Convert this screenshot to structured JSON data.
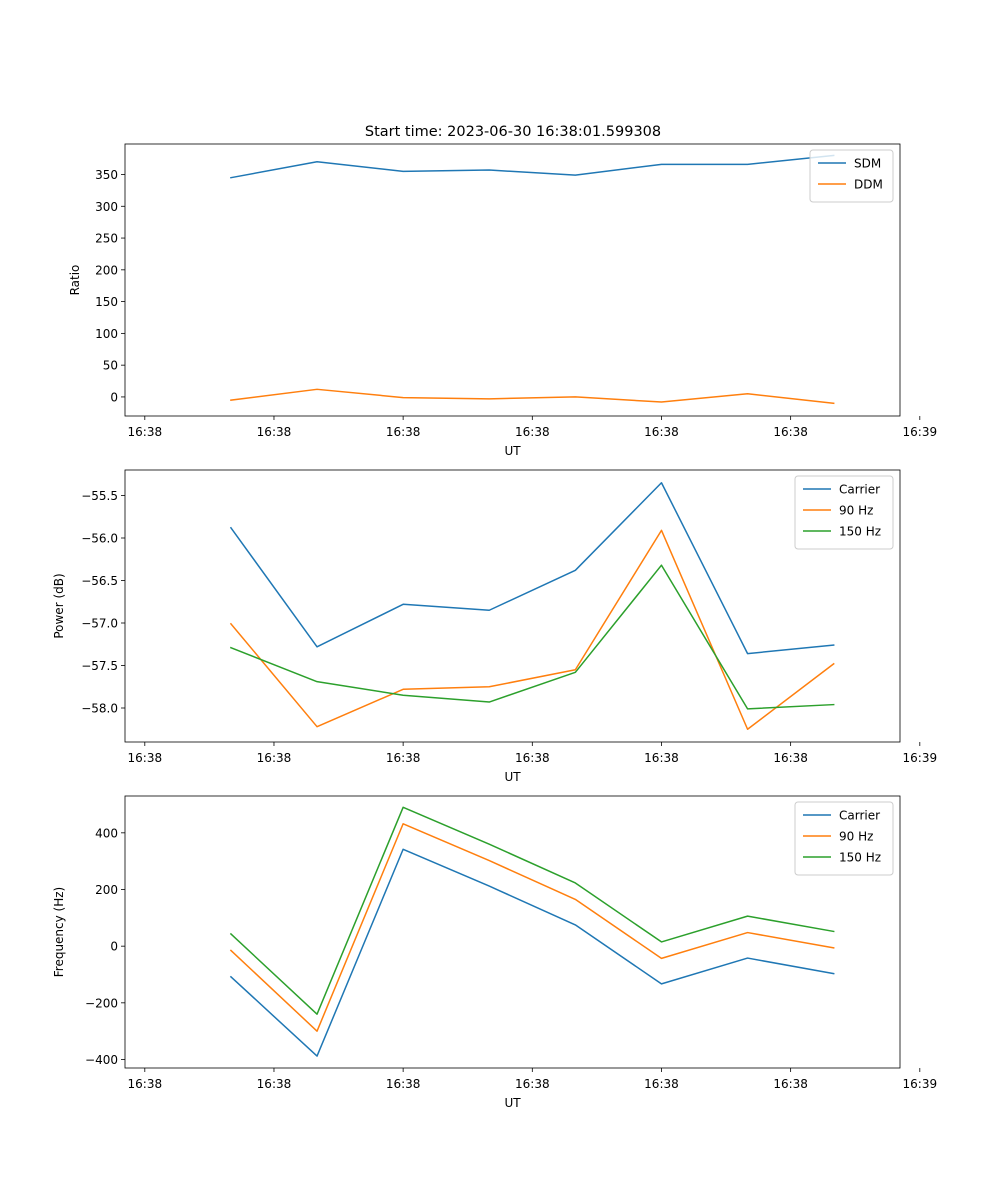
{
  "figure": {
    "title": "Start time: 2023-06-30 16:38:01.599308"
  },
  "colors": {
    "blue": "#1f77b4",
    "orange": "#ff7f0e",
    "green": "#2ca02c",
    "axis": "#000000"
  },
  "chart_data": [
    {
      "type": "line",
      "title": "Start time: 2023-06-30 16:38:01.599308",
      "xlabel": "UT",
      "ylabel": "Ratio",
      "x": [
        0.5,
        1.0,
        1.5,
        2.0,
        2.5,
        3.0,
        3.5,
        4.0
      ],
      "xlim": [
        -0.115,
        4.385
      ],
      "x_ticks": [
        0,
        0.75,
        1.5,
        2.25,
        3.0,
        3.75,
        4.5
      ],
      "x_ticklabels": [
        "16:38",
        "16:38",
        "16:38",
        "16:38",
        "16:38",
        "16:38",
        "16:39"
      ],
      "ylim": [
        -30,
        398
      ],
      "y_ticks": [
        0,
        50,
        100,
        150,
        200,
        250,
        300,
        350
      ],
      "y_ticklabels": [
        "0",
        "50",
        "100",
        "150",
        "200",
        "250",
        "300",
        "350"
      ],
      "legend_position": "upper right",
      "series": [
        {
          "name": "SDM",
          "color": "#1f77b4",
          "values": [
            345,
            370,
            355,
            357,
            349,
            366,
            366,
            380
          ]
        },
        {
          "name": "DDM",
          "color": "#ff7f0e",
          "values": [
            -5,
            12,
            -1,
            -3,
            0,
            -8,
            5,
            -10
          ]
        }
      ]
    },
    {
      "type": "line",
      "title": "",
      "xlabel": "UT",
      "ylabel": "Power (dB)",
      "x": [
        0.5,
        1.0,
        1.5,
        2.0,
        2.5,
        3.0,
        3.5,
        4.0
      ],
      "xlim": [
        -0.115,
        4.385
      ],
      "x_ticks": [
        0,
        0.75,
        1.5,
        2.25,
        3.0,
        3.75,
        4.5
      ],
      "x_ticklabels": [
        "16:38",
        "16:38",
        "16:38",
        "16:38",
        "16:38",
        "16:38",
        "16:39"
      ],
      "ylim": [
        -58.4,
        -55.2
      ],
      "y_ticks": [
        -58.0,
        -57.5,
        -57.0,
        -56.5,
        -56.0,
        -55.5
      ],
      "y_ticklabels": [
        "−58.0",
        "−57.5",
        "−57.0",
        "−56.5",
        "−56.0",
        "−55.5"
      ],
      "legend_position": "upper right",
      "series": [
        {
          "name": "Carrier",
          "color": "#1f77b4",
          "values": [
            -55.88,
            -57.28,
            -56.78,
            -56.85,
            -56.38,
            -55.35,
            -57.36,
            -57.26
          ]
        },
        {
          "name": "90 Hz",
          "color": "#ff7f0e",
          "values": [
            -57.01,
            -58.22,
            -57.78,
            -57.75,
            -57.55,
            -55.91,
            -58.25,
            -57.48
          ]
        },
        {
          "name": "150 Hz",
          "color": "#2ca02c",
          "values": [
            -57.29,
            -57.69,
            -57.85,
            -57.93,
            -57.58,
            -56.32,
            -58.01,
            -57.96
          ]
        }
      ]
    },
    {
      "type": "line",
      "title": "",
      "xlabel": "UT",
      "ylabel": "Frequency (Hz)",
      "x": [
        0.5,
        1.0,
        1.5,
        2.0,
        2.5,
        3.0,
        3.5,
        4.0
      ],
      "xlim": [
        -0.115,
        4.385
      ],
      "x_ticks": [
        0,
        0.75,
        1.5,
        2.25,
        3.0,
        3.75,
        4.5
      ],
      "x_ticklabels": [
        "16:38",
        "16:38",
        "16:38",
        "16:38",
        "16:38",
        "16:38",
        "16:39"
      ],
      "ylim": [
        -430,
        530
      ],
      "y_ticks": [
        -400,
        -200,
        0,
        200,
        400
      ],
      "y_ticklabels": [
        "−400",
        "−200",
        "0",
        "200",
        "400"
      ],
      "legend_position": "upper right",
      "series": [
        {
          "name": "Carrier",
          "color": "#1f77b4",
          "values": [
            -108,
            -388,
            342,
            212,
            75,
            -133,
            -42,
            -97
          ]
        },
        {
          "name": "90 Hz",
          "color": "#ff7f0e",
          "values": [
            -15,
            -300,
            432,
            302,
            165,
            -43,
            48,
            -6
          ]
        },
        {
          "name": "150 Hz",
          "color": "#2ca02c",
          "values": [
            43,
            -240,
            490,
            360,
            223,
            15,
            106,
            52
          ]
        }
      ]
    }
  ]
}
